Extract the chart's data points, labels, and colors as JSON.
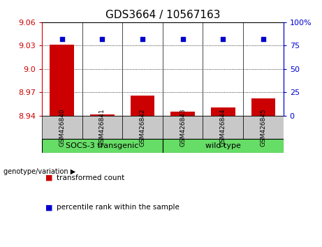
{
  "title": "GDS3664 / 10567163",
  "samples": [
    "GSM426840",
    "GSM426841",
    "GSM426842",
    "GSM426843",
    "GSM426844",
    "GSM426845"
  ],
  "red_values": [
    9.031,
    8.942,
    8.966,
    8.945,
    8.951,
    8.962
  ],
  "blue_values": [
    82,
    82,
    82,
    82,
    82,
    82
  ],
  "ylim_left": [
    8.94,
    9.06
  ],
  "yticks_left": [
    8.94,
    8.97,
    9.0,
    9.03,
    9.06
  ],
  "ylim_right": [
    0,
    100
  ],
  "yticks_right": [
    0,
    25,
    50,
    75,
    100
  ],
  "ytick_labels_right": [
    "0",
    "25",
    "50",
    "75",
    "100%"
  ],
  "group1_label": "SOCS-3 transgenic",
  "group1_indices": [
    0,
    1,
    2
  ],
  "group2_label": "wild type",
  "group2_indices": [
    3,
    4,
    5
  ],
  "group_label_prefix": "genotype/variation",
  "legend_red": "transformed count",
  "legend_blue": "percentile rank within the sample",
  "bar_color": "#CC0000",
  "dot_color": "#0000CC",
  "bg_plot": "#FFFFFF",
  "bg_xtick": "#C8C8C8",
  "bg_group": "#66DD66",
  "title_fontsize": 11,
  "tick_fontsize": 8,
  "sample_fontsize": 6.5
}
